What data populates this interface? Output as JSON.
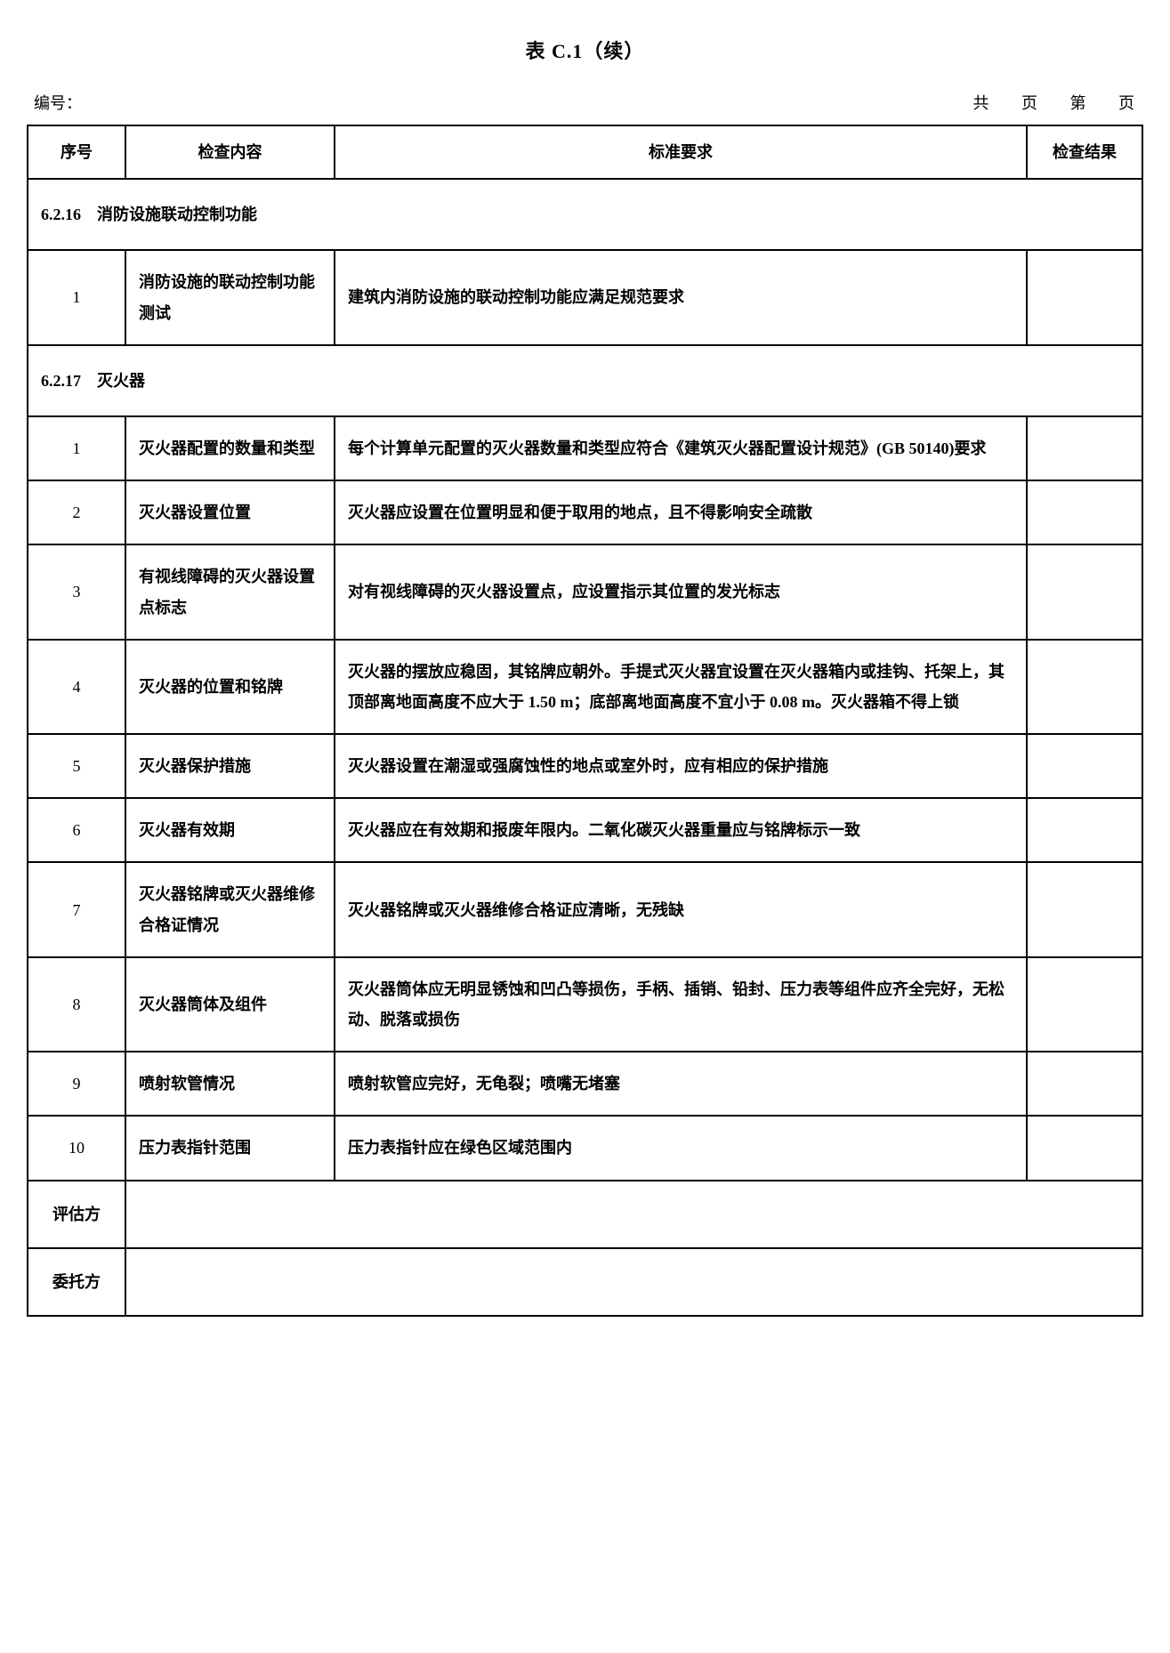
{
  "title": "表 C.1（续）",
  "header": {
    "number_label": "编号：",
    "total_label": "共",
    "page_unit1": "页",
    "current_label": "第",
    "page_unit2": "页"
  },
  "columns": {
    "seq": "序号",
    "content": "检查内容",
    "req": "标准要求",
    "result": "检查结果"
  },
  "sections": [
    {
      "heading": "6.2.16　消防设施联动控制功能",
      "rows": [
        {
          "seq": "1",
          "content": "消防设施的联动控制功能测试",
          "req": "建筑内消防设施的联动控制功能应满足规范要求",
          "result": ""
        }
      ]
    },
    {
      "heading": "6.2.17　灭火器",
      "rows": [
        {
          "seq": "1",
          "content": "灭火器配置的数量和类型",
          "req": "每个计算单元配置的灭火器数量和类型应符合《建筑灭火器配置设计规范》(GB 50140)要求",
          "result": ""
        },
        {
          "seq": "2",
          "content": "灭火器设置位置",
          "req": "灭火器应设置在位置明显和便于取用的地点，且不得影响安全疏散",
          "result": ""
        },
        {
          "seq": "3",
          "content": "有视线障碍的灭火器设置点标志",
          "req": "对有视线障碍的灭火器设置点，应设置指示其位置的发光标志",
          "result": ""
        },
        {
          "seq": "4",
          "content": "灭火器的位置和铭牌",
          "req": "灭火器的摆放应稳固，其铭牌应朝外。手提式灭火器宜设置在灭火器箱内或挂钩、托架上，其顶部离地面高度不应大于 1.50 m；底部离地面高度不宜小于 0.08 m。灭火器箱不得上锁",
          "result": ""
        },
        {
          "seq": "5",
          "content": "灭火器保护措施",
          "req": "灭火器设置在潮湿或强腐蚀性的地点或室外时，应有相应的保护措施",
          "result": ""
        },
        {
          "seq": "6",
          "content": "灭火器有效期",
          "req": "灭火器应在有效期和报废年限内。二氧化碳灭火器重量应与铭牌标示一致",
          "result": ""
        },
        {
          "seq": "7",
          "content": "灭火器铭牌或灭火器维修合格证情况",
          "req": "灭火器铭牌或灭火器维修合格证应清晰，无残缺",
          "result": ""
        },
        {
          "seq": "8",
          "content": "灭火器筒体及组件",
          "req": "灭火器筒体应无明显锈蚀和凹凸等损伤，手柄、插销、铅封、压力表等组件应齐全完好，无松动、脱落或损伤",
          "result": ""
        },
        {
          "seq": "9",
          "content": "喷射软管情况",
          "req": "喷射软管应完好，无龟裂；喷嘴无堵塞",
          "result": ""
        },
        {
          "seq": "10",
          "content": "压力表指针范围",
          "req": "压力表指针应在绿色区域范围内",
          "result": ""
        }
      ]
    }
  ],
  "footer": {
    "evaluator": "评估方",
    "client": "委托方"
  }
}
